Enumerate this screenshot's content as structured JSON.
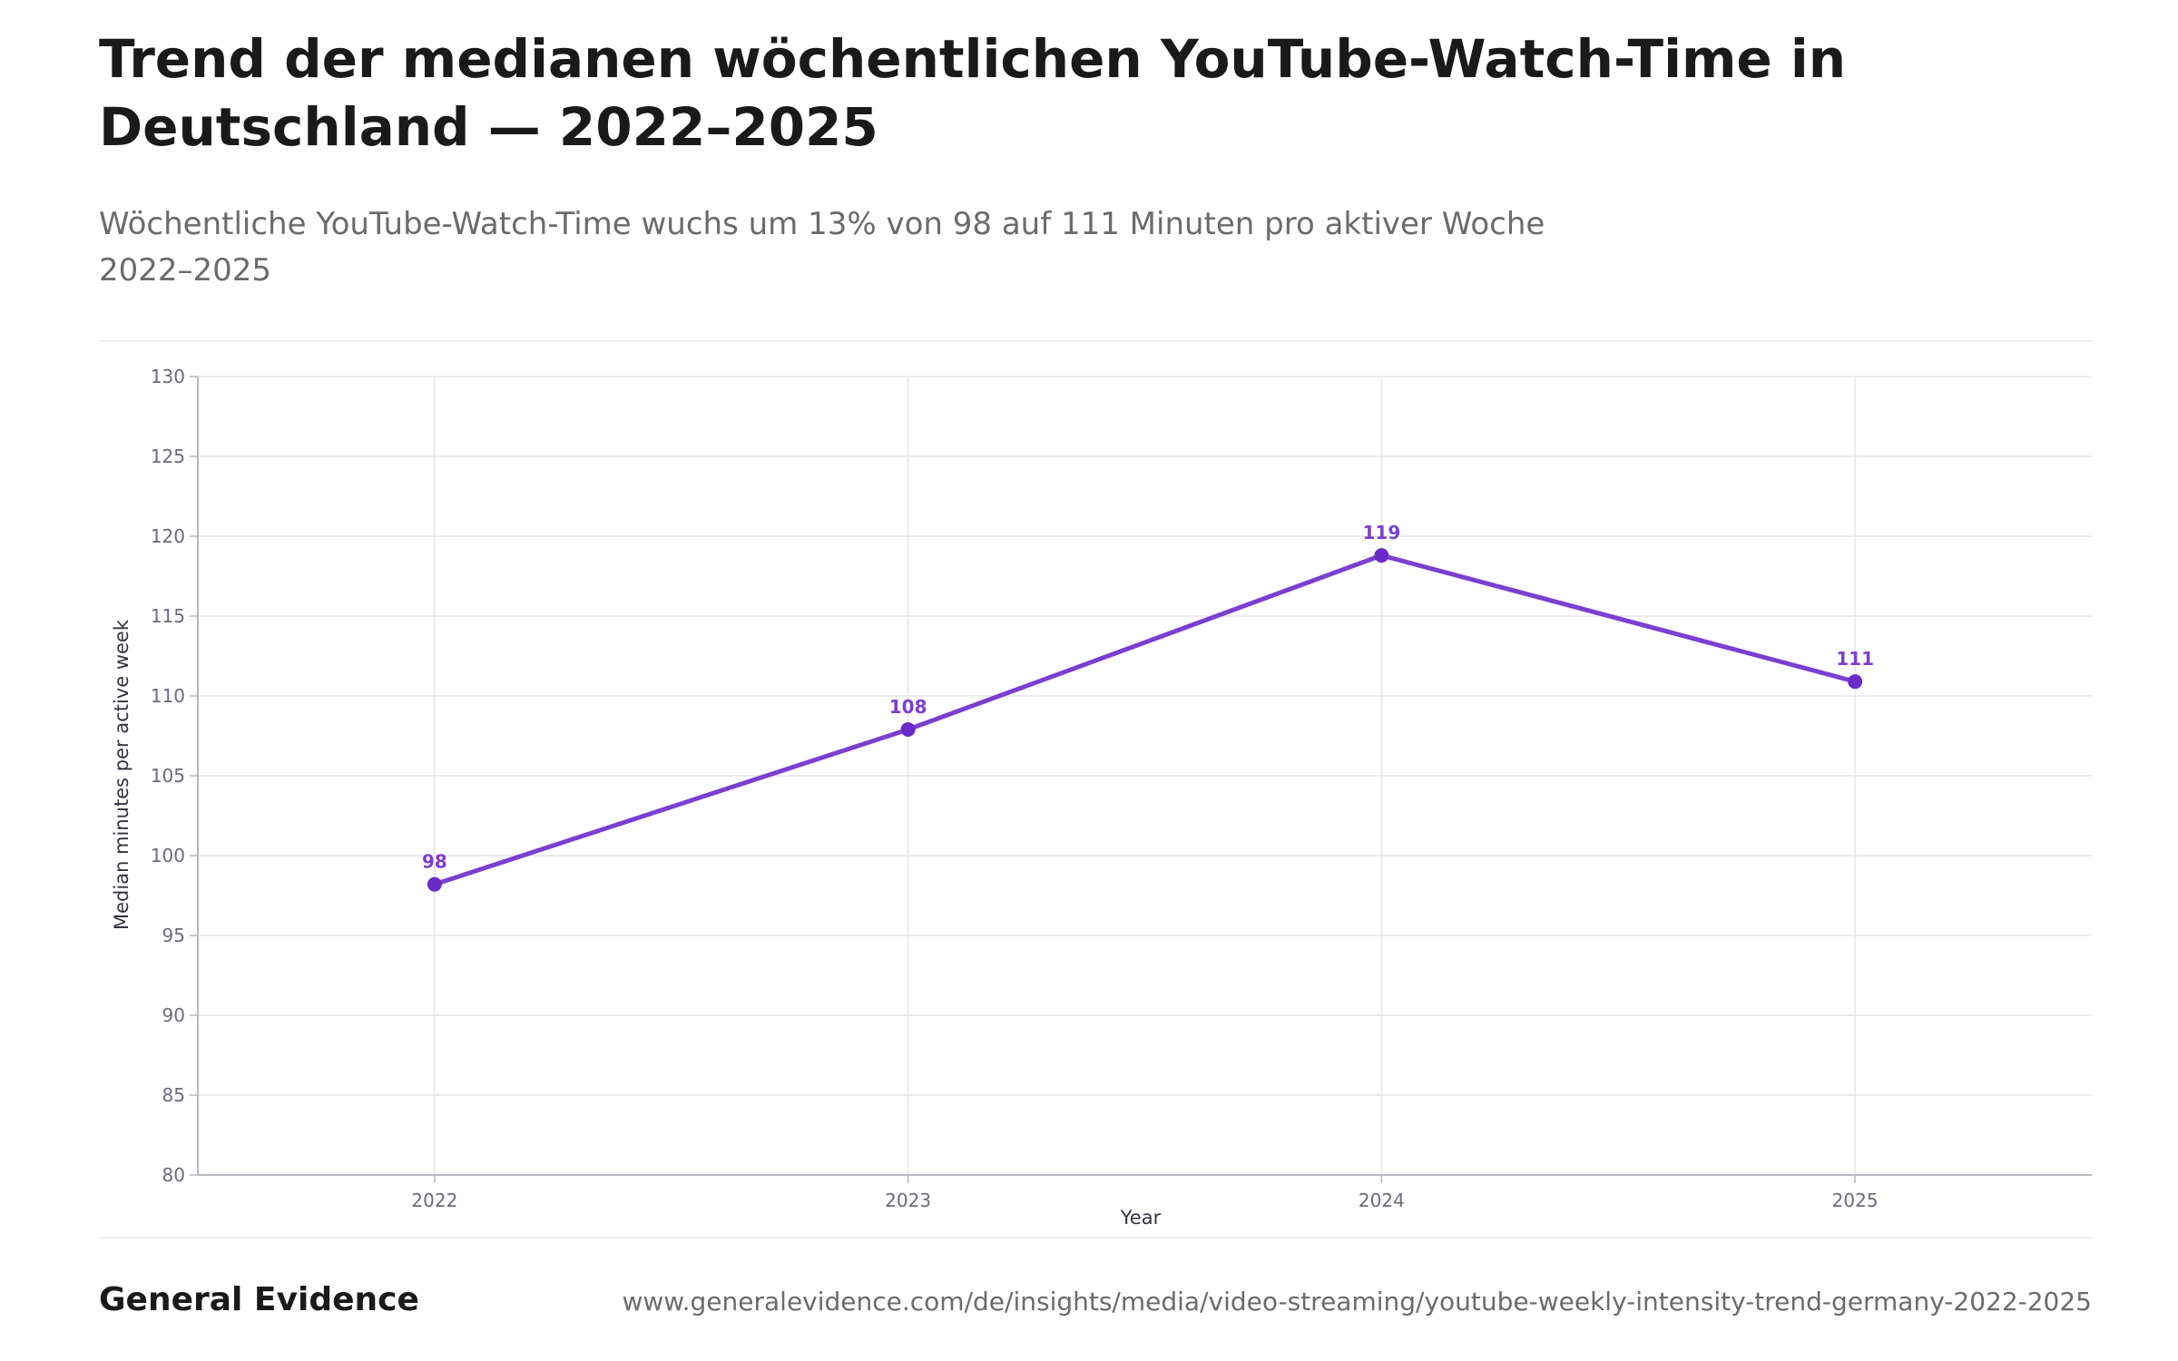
{
  "header": {
    "title": "Trend der medianen wöchentlichen YouTube-Watch-Time in Deutschland — 2022–2025",
    "subtitle_line1": "Wöchentliche YouTube-Watch-Time wuchs um 13% von 98 auf 111 Minuten pro aktiver Woche",
    "subtitle_line2": "2022–2025"
  },
  "footer": {
    "brand": "General Evidence",
    "url": "www.generalevidence.com/de/insights/media/video-streaming/youtube-weekly-intensity-trend-germany-2022-2025"
  },
  "colors": {
    "line": "#7b3fd1",
    "point": "#6a2bc9",
    "label": "#7b3fd1",
    "grid": "#e6e6ea",
    "axis": "#b8b8c0",
    "tick_text": "#6b6b7a"
  },
  "chart_data": {
    "type": "line",
    "title": "",
    "xlabel": "Year",
    "ylabel": "Median minutes per active week",
    "x": [
      "2022",
      "2023",
      "2024",
      "2025"
    ],
    "series": [
      {
        "values": [
          98.2,
          107.9,
          118.8,
          110.9
        ],
        "labels": [
          "98",
          "108",
          "119",
          "111"
        ]
      }
    ],
    "ylim": [
      80,
      130
    ],
    "yticks": [
      80,
      85,
      90,
      95,
      100,
      105,
      110,
      115,
      120,
      125,
      130
    ],
    "grid": true,
    "legend": "none"
  }
}
